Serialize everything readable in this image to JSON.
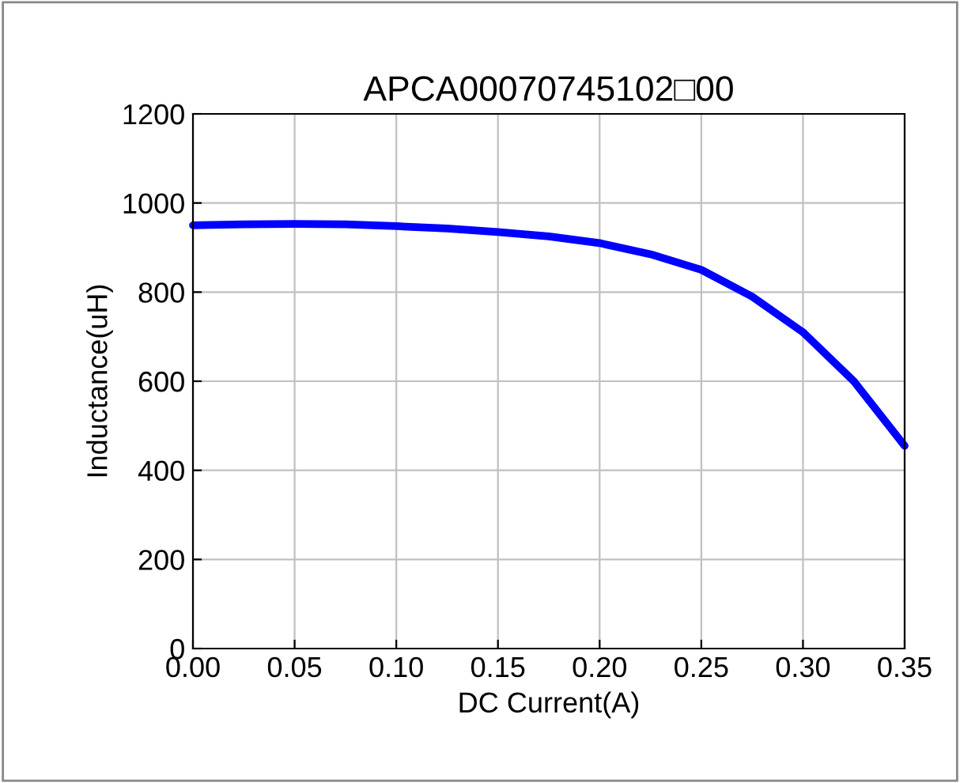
{
  "chart_data": {
    "type": "line",
    "title": "APCA00070745102□00",
    "xlabel": "DC Current(A)",
    "ylabel": "Inductance(uH)",
    "series": [
      {
        "color": "#0000ff",
        "x": [
          0,
          0.025,
          0.05,
          0.075,
          0.1,
          0.125,
          0.15,
          0.175,
          0.2,
          0.225,
          0.25,
          0.275,
          0.3,
          0.325,
          0.35
        ],
        "values": [
          950,
          952,
          953,
          952,
          948,
          943,
          935,
          925,
          910,
          885,
          850,
          790,
          710,
          600,
          455
        ]
      }
    ],
    "xlim": [
      0,
      0.35
    ],
    "ylim": [
      0,
      1200
    ],
    "xticks": [
      {
        "value": 0,
        "label": "0.00"
      },
      {
        "value": 0.05,
        "label": "0.05"
      },
      {
        "value": 0.1,
        "label": "0.10"
      },
      {
        "value": 0.15,
        "label": "0.15"
      },
      {
        "value": 0.2,
        "label": "0.20"
      },
      {
        "value": 0.25,
        "label": "0.25"
      },
      {
        "value": 0.3,
        "label": "0.30"
      },
      {
        "value": 0.35,
        "label": "0.35"
      }
    ],
    "yticks": [
      0,
      200,
      400,
      600,
      800,
      1000,
      1200
    ],
    "grid": true,
    "legend": false,
    "marker": "none",
    "line_style": "solid"
  }
}
